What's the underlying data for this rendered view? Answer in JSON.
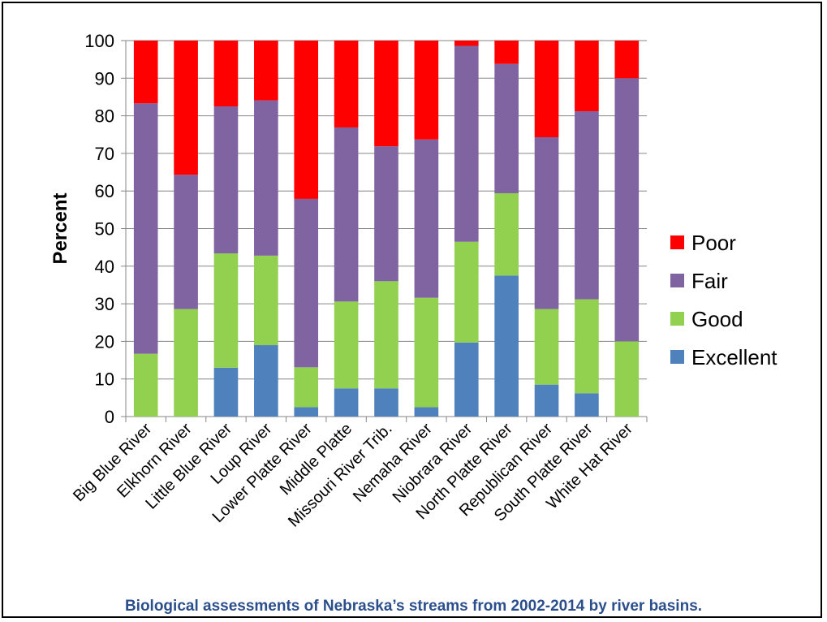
{
  "chart_data": {
    "type": "bar",
    "stacked": true,
    "ylabel": "Percent",
    "ylim": [
      0,
      100
    ],
    "yticks": [
      0,
      10,
      20,
      30,
      40,
      50,
      60,
      70,
      80,
      90,
      100
    ],
    "grid": true,
    "legend_position": "right",
    "categories": [
      "Big Blue River",
      "Elkhorn River",
      "Little Blue River",
      "Loup River",
      "Lower Platte River",
      "Middle Platte",
      "Missouri River Trib.",
      "Nemaha River",
      "Niobrara River",
      "North Platte River",
      "Republican River",
      "South Platte River",
      "White Hat River"
    ],
    "series": [
      {
        "name": "Excellent",
        "color": "#4f81bd",
        "values": [
          0,
          0,
          13,
          19,
          2.5,
          7.5,
          7.5,
          2.5,
          19.7,
          37.5,
          8.5,
          6.2,
          0
        ]
      },
      {
        "name": "Good",
        "color": "#92d050",
        "values": [
          16.7,
          28.6,
          30.4,
          23.8,
          10.6,
          23.1,
          28.5,
          29.1,
          26.8,
          21.9,
          20.1,
          25,
          20
        ]
      },
      {
        "name": "Fair",
        "color": "#8064a2",
        "values": [
          66.6,
          35.7,
          39.1,
          41.3,
          44.8,
          46.3,
          35.9,
          42.1,
          52.1,
          34.4,
          45.7,
          50,
          70
        ]
      },
      {
        "name": "Poor",
        "color": "#ff0000",
        "values": [
          16.7,
          35.7,
          17.5,
          15.9,
          42.1,
          23.1,
          28.1,
          26.3,
          1.4,
          6.2,
          25.7,
          18.8,
          10
        ]
      }
    ]
  },
  "caption": "Biological assessments of Nebraska’s streams from 2002-2014 by river basins."
}
